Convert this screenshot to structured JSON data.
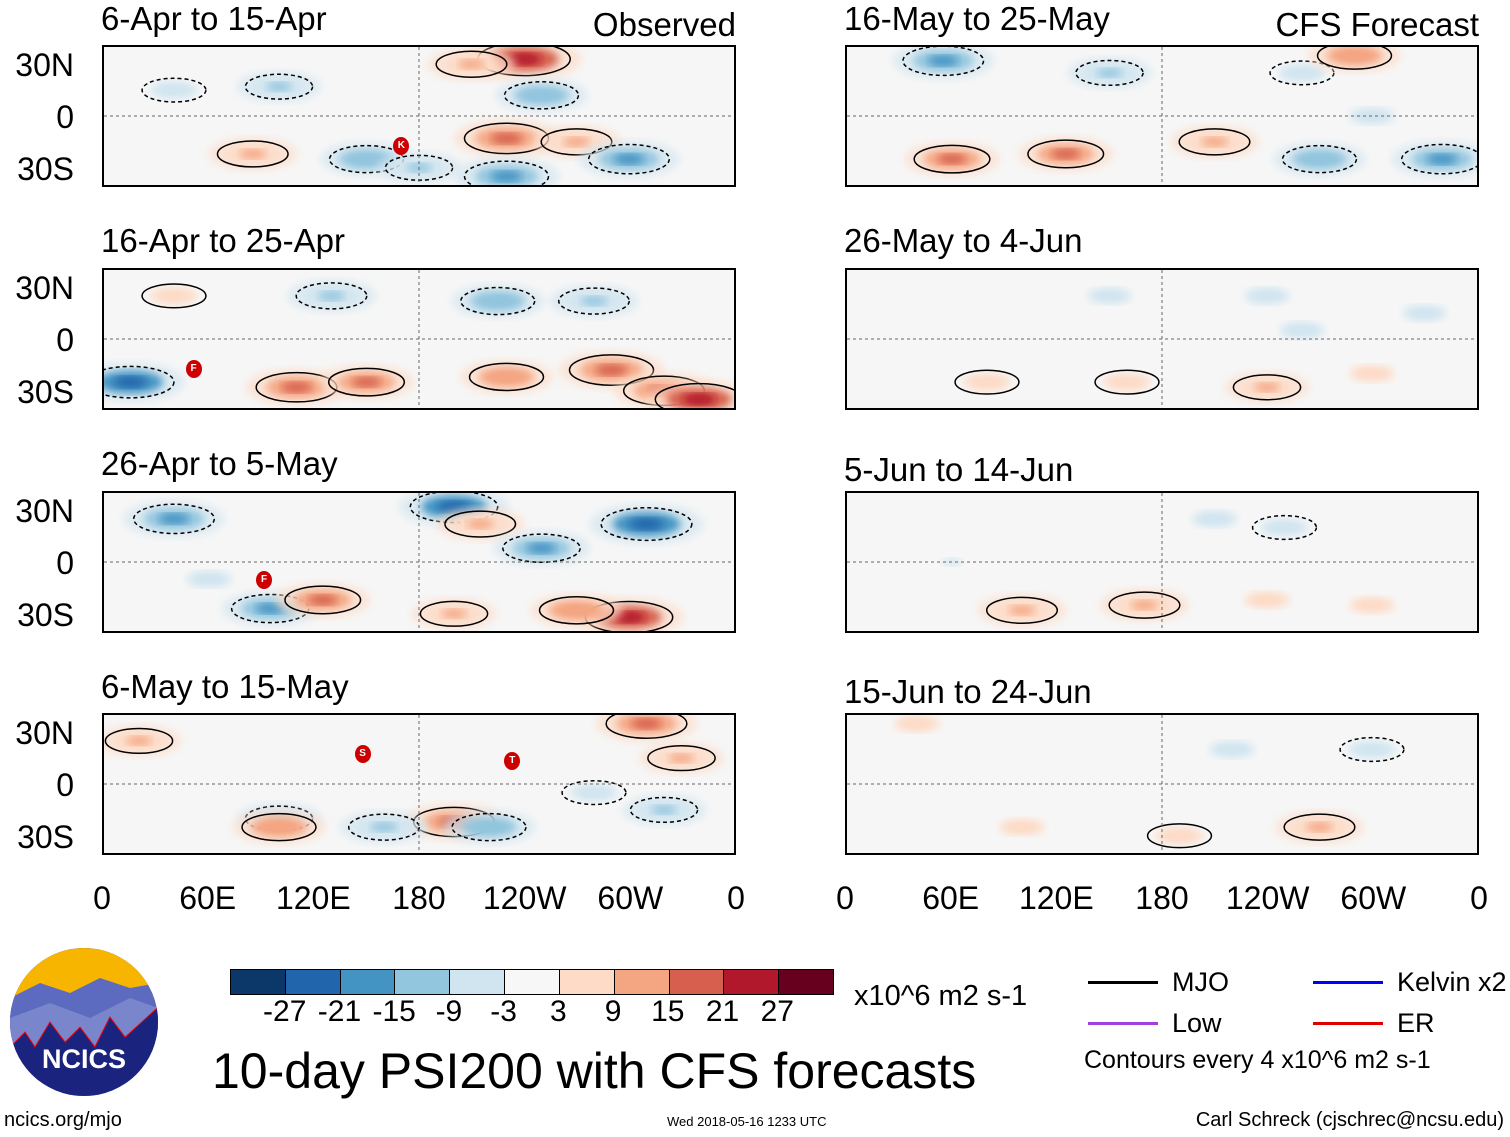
{
  "observed_label": "Observed",
  "forecast_label": "CFS Forecast",
  "lat_labels": [
    "30N",
    "0",
    "30S"
  ],
  "lon_labels": [
    "0",
    "60E",
    "120E",
    "180",
    "120W",
    "60W",
    "0"
  ],
  "chart_data": {
    "type": "heatmap",
    "title": "10-day PSI200 with CFS forecasts",
    "units": "x10^6 m2 s-1",
    "contour_note": "Contours every 4 x10^6 m2 s-1",
    "colorbar": {
      "labels": [
        "-27",
        "-21",
        "-15",
        "-9",
        "-3",
        "3",
        "9",
        "15",
        "21",
        "27"
      ],
      "colors": [
        "#0b3868",
        "#2166ac",
        "#4393c3",
        "#92c5de",
        "#d1e5f0",
        "#f7f7f7",
        "#fddbc7",
        "#f4a582",
        "#d6604d",
        "#b2182b",
        "#67001f"
      ]
    },
    "xlim": [
      0,
      360
    ],
    "ylim": [
      -40,
      40
    ],
    "panels": [
      {
        "title": "6-Apr to 15-Apr",
        "source": "observed",
        "anomalies": [
          [
            240,
            33,
            25
          ],
          [
            210,
            30,
            12
          ],
          [
            40,
            15,
            -8
          ],
          [
            100,
            17,
            -10
          ],
          [
            250,
            12,
            -14
          ],
          [
            230,
            -13,
            20
          ],
          [
            270,
            -15,
            12
          ],
          [
            300,
            -25,
            -18
          ],
          [
            150,
            -25,
            -14
          ],
          [
            85,
            -22,
            12
          ],
          [
            180,
            -30,
            -10
          ],
          [
            230,
            -35,
            -20
          ]
        ],
        "storms": [
          {
            "lon": 170,
            "lat": -17,
            "letter": "K"
          }
        ]
      },
      {
        "title": "16-Apr to 25-Apr",
        "source": "observed",
        "anomalies": [
          [
            40,
            25,
            8
          ],
          [
            130,
            25,
            -12
          ],
          [
            225,
            22,
            -14
          ],
          [
            280,
            22,
            -12
          ],
          [
            15,
            -25,
            -22
          ],
          [
            110,
            -28,
            18
          ],
          [
            150,
            -25,
            15
          ],
          [
            230,
            -22,
            14
          ],
          [
            290,
            -18,
            20
          ],
          [
            320,
            -30,
            18
          ],
          [
            340,
            -35,
            22
          ]
        ],
        "storms": [
          {
            "lon": 52,
            "lat": -17,
            "letter": "F"
          }
        ]
      },
      {
        "title": "26-Apr to 5-May",
        "source": "observed",
        "anomalies": [
          [
            40,
            25,
            -18
          ],
          [
            200,
            32,
            -22
          ],
          [
            215,
            22,
            12
          ],
          [
            250,
            8,
            -16
          ],
          [
            310,
            22,
            -24
          ],
          [
            95,
            -27,
            -16
          ],
          [
            125,
            -22,
            15
          ],
          [
            300,
            -32,
            22
          ],
          [
            270,
            -28,
            14
          ],
          [
            60,
            -10,
            -6
          ],
          [
            200,
            -30,
            10
          ]
        ],
        "storms": [
          {
            "lon": 92,
            "lat": -10,
            "letter": "F"
          }
        ]
      },
      {
        "title": "6-May to 15-May",
        "source": "observed",
        "anomalies": [
          [
            20,
            25,
            10
          ],
          [
            310,
            35,
            18
          ],
          [
            330,
            15,
            10
          ],
          [
            100,
            -20,
            -10
          ],
          [
            100,
            -25,
            14
          ],
          [
            200,
            -22,
            18
          ],
          [
            220,
            -25,
            -14
          ],
          [
            160,
            -25,
            -12
          ],
          [
            320,
            -15,
            -10
          ],
          [
            280,
            -5,
            -8
          ]
        ],
        "storms": [
          {
            "lon": 148,
            "lat": 17,
            "letter": "S"
          },
          {
            "lon": 233,
            "lat": 13,
            "letter": "T"
          }
        ]
      },
      {
        "title": "16-May to 25-May",
        "source": "CFS forecast",
        "anomalies": [
          [
            55,
            32,
            -18
          ],
          [
            150,
            25,
            -10
          ],
          [
            260,
            25,
            -8
          ],
          [
            290,
            35,
            14
          ],
          [
            60,
            -25,
            15
          ],
          [
            125,
            -22,
            15
          ],
          [
            210,
            -15,
            12
          ],
          [
            270,
            -25,
            -14
          ],
          [
            340,
            -25,
            -18
          ],
          [
            300,
            0,
            -6
          ]
        ],
        "storms": []
      },
      {
        "title": "26-May to 4-Jun",
        "source": "CFS forecast",
        "anomalies": [
          [
            240,
            25,
            -6
          ],
          [
            150,
            25,
            -5
          ],
          [
            260,
            5,
            -6
          ],
          [
            80,
            -25,
            8
          ],
          [
            160,
            -25,
            8
          ],
          [
            240,
            -28,
            10
          ],
          [
            300,
            -20,
            6
          ],
          [
            330,
            15,
            -5
          ]
        ],
        "storms": []
      },
      {
        "title": "5-Jun to 14-Jun",
        "source": "CFS forecast",
        "anomalies": [
          [
            210,
            25,
            -6
          ],
          [
            250,
            20,
            -8
          ],
          [
            100,
            -28,
            12
          ],
          [
            170,
            -25,
            12
          ],
          [
            240,
            -22,
            6
          ],
          [
            300,
            -25,
            6
          ],
          [
            60,
            0,
            -4
          ]
        ],
        "storms": []
      },
      {
        "title": "15-Jun to 24-Jun",
        "source": "CFS forecast",
        "anomalies": [
          [
            220,
            20,
            -6
          ],
          [
            300,
            20,
            -8
          ],
          [
            270,
            -25,
            12
          ],
          [
            190,
            -30,
            8
          ],
          [
            100,
            -25,
            6
          ],
          [
            40,
            35,
            6
          ]
        ],
        "storms": []
      }
    ]
  },
  "legend": {
    "mjo": "MJO",
    "kelvin": "Kelvin x2",
    "low": "Low",
    "er": "ER",
    "colors": {
      "mjo": "#000000",
      "kelvin": "#0000ff",
      "low": "#a040e0",
      "er": "#e00000"
    }
  },
  "logo_text": "NCICS",
  "footer": {
    "url": "ncics.org/mjo",
    "timestamp": "Wed 2018-05-16 1233 UTC",
    "author": "Carl Schreck (cjschrec@ncsu.edu)"
  }
}
